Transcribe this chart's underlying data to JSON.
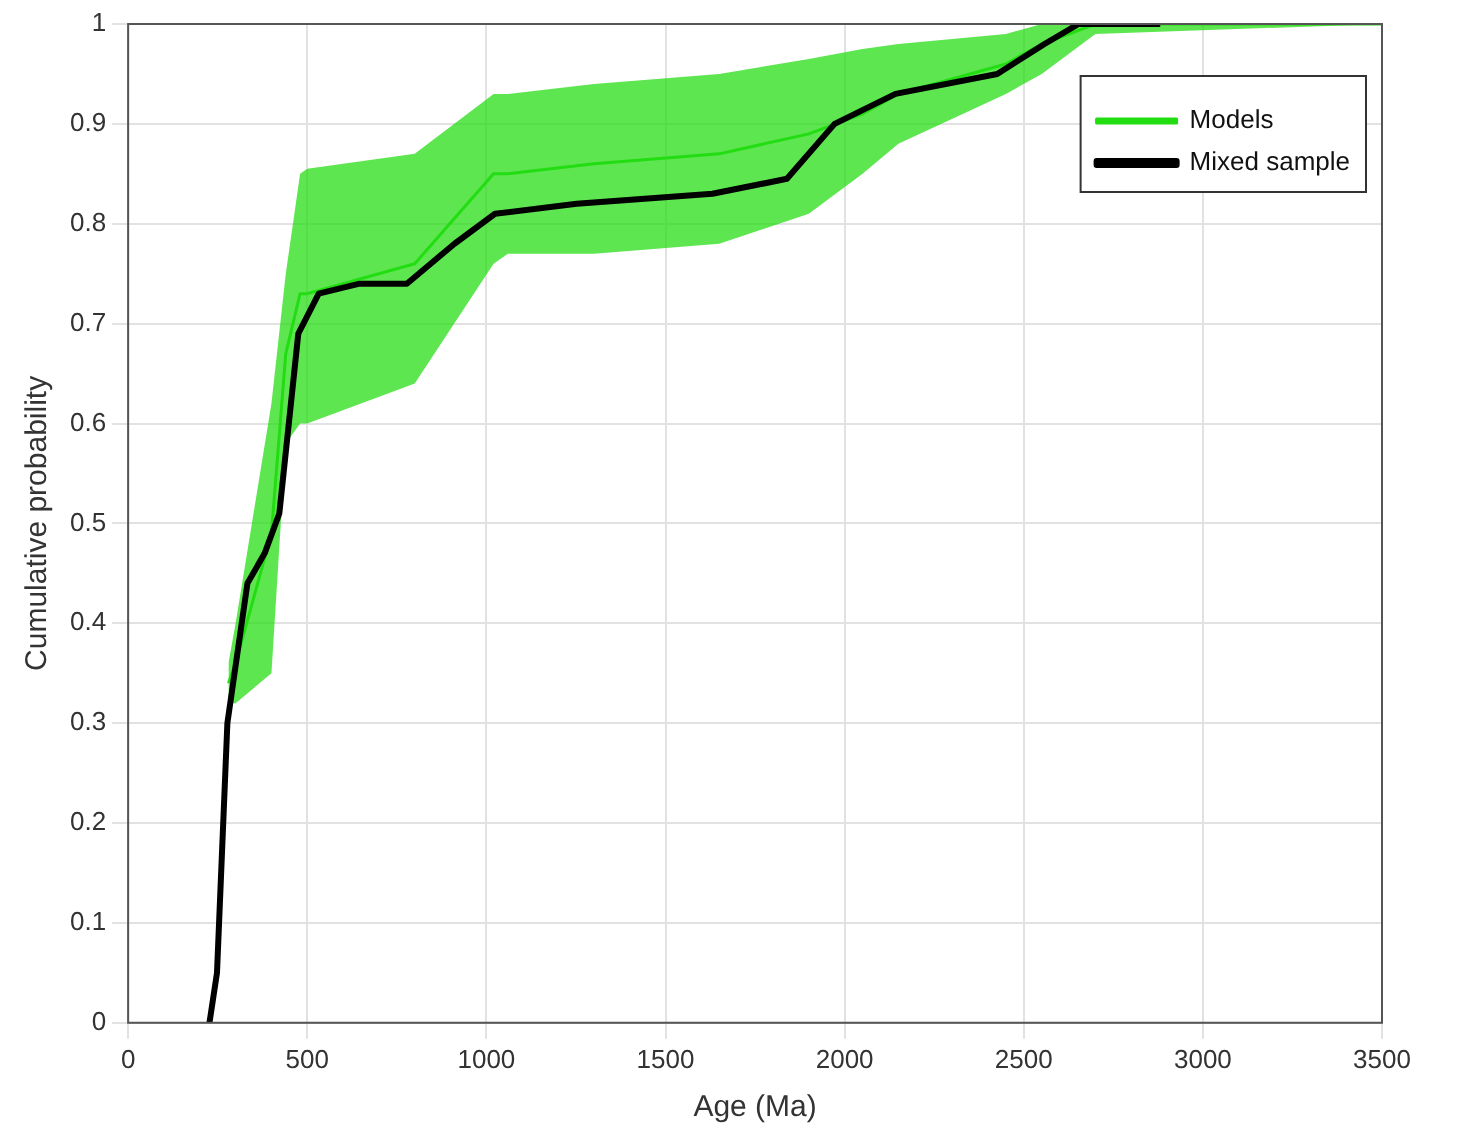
{
  "chart_data": {
    "type": "line",
    "xlabel": "Age (Ma)",
    "ylabel": "Cumulative probability",
    "xlim": [
      0,
      3500
    ],
    "xticks": [
      0,
      500,
      1000,
      1500,
      2000,
      2500,
      3000,
      3500
    ],
    "ylim": [
      0,
      1
    ],
    "yticks": [
      0,
      0.1,
      0.2,
      0.3,
      0.4,
      0.5,
      0.6,
      0.7,
      0.8,
      0.9,
      1
    ],
    "grid": true,
    "legend": "top right",
    "marker": "none",
    "line_style": "solid",
    "series": [
      {
        "name": "Models",
        "color": "#22dd11",
        "x": [
          280,
          300,
          400,
          440,
          480,
          500,
          800,
          1020,
          1060,
          1300,
          1650,
          1900,
          2050,
          2150,
          2450,
          2550,
          2700,
          3500
        ],
        "values": [
          0.34,
          0.36,
          0.49,
          0.67,
          0.73,
          0.73,
          0.76,
          0.85,
          0.85,
          0.86,
          0.87,
          0.89,
          0.91,
          0.93,
          0.96,
          0.98,
          1.0,
          1.0
        ],
        "lower": [
          0.32,
          0.32,
          0.35,
          0.58,
          0.6,
          0.6,
          0.64,
          0.76,
          0.77,
          0.77,
          0.78,
          0.81,
          0.85,
          0.88,
          0.93,
          0.95,
          0.99,
          1.0
        ],
        "upper": [
          0.36,
          0.4,
          0.62,
          0.75,
          0.85,
          0.855,
          0.87,
          0.93,
          0.93,
          0.94,
          0.95,
          0.965,
          0.975,
          0.98,
          0.99,
          1.0,
          1.0,
          1.0
        ]
      },
      {
        "name": "Mixed sample",
        "color": "#000000",
        "x": [
          227,
          248,
          277,
          333,
          381,
          422,
          475,
          532,
          646,
          778,
          911,
          1024,
          1252,
          1631,
          1839,
          1972,
          2142,
          2426,
          2558,
          2653,
          2881
        ],
        "values": [
          0,
          0.05,
          0.3,
          0.44,
          0.47,
          0.51,
          0.69,
          0.73,
          0.74,
          0.74,
          0.78,
          0.81,
          0.82,
          0.83,
          0.845,
          0.9,
          0.93,
          0.95,
          0.98,
          1.0,
          1.0
        ]
      }
    ]
  }
}
